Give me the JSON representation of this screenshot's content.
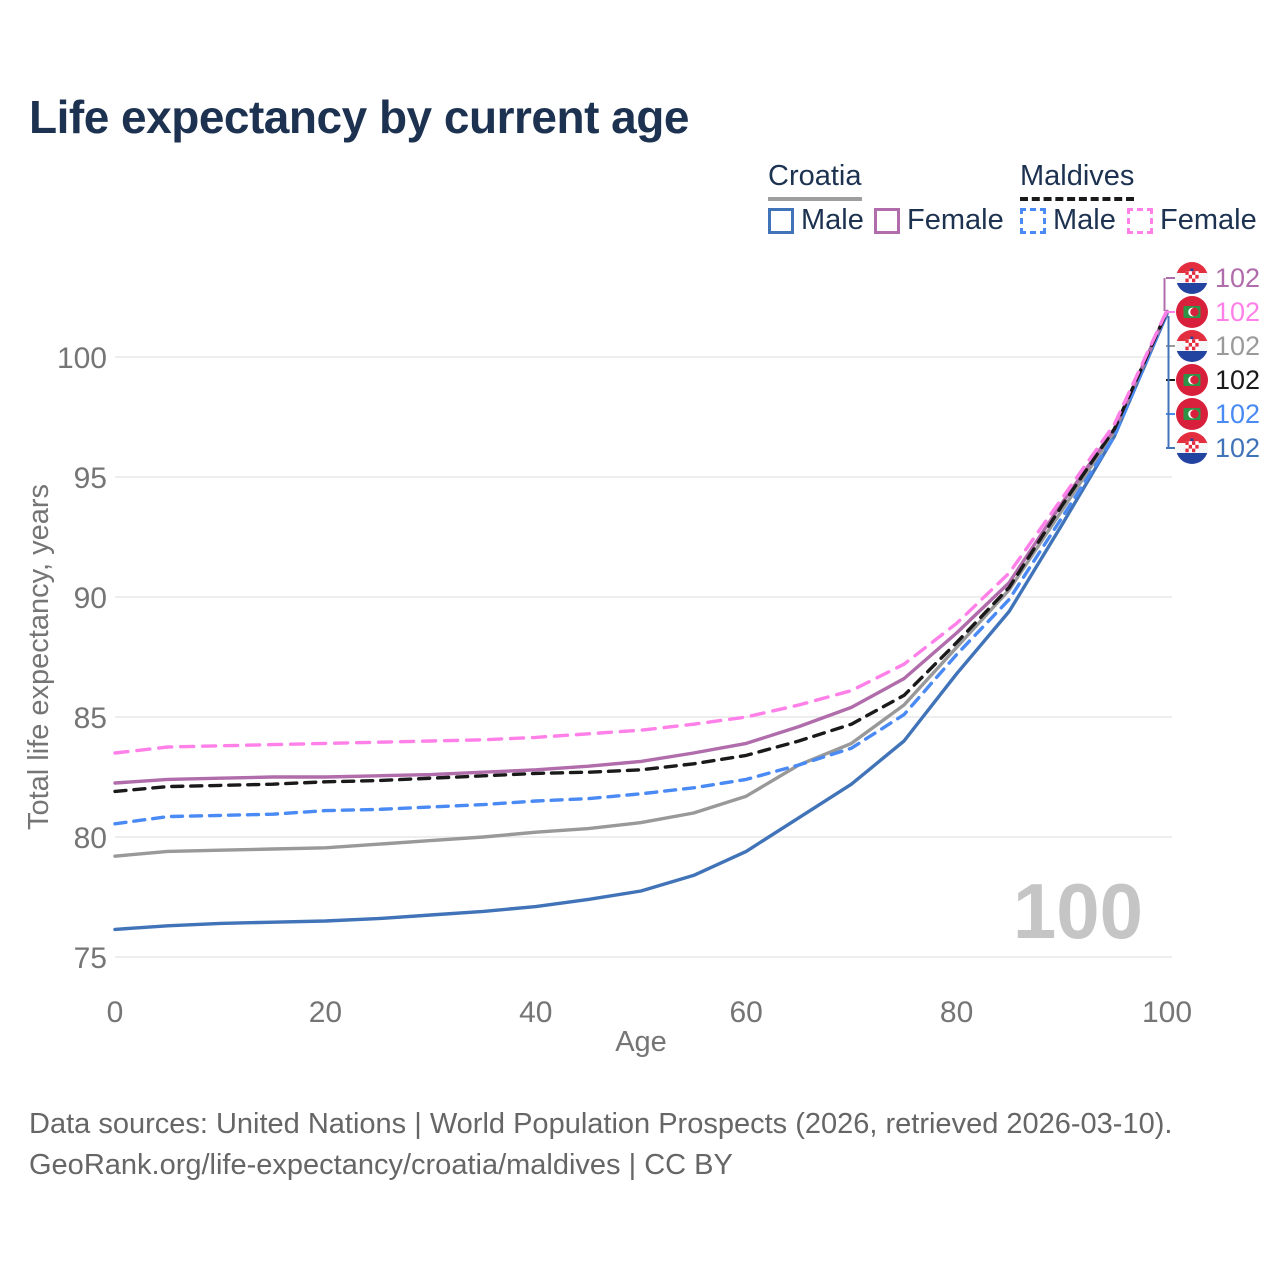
{
  "title": "Life expectancy by current age",
  "legend": {
    "groups": [
      {
        "label": "Croatia",
        "underline": {
          "color": "#9e9e9e",
          "style": "solid"
        },
        "entries": [
          {
            "label": "Male",
            "color": "#4173b8",
            "dash": false
          },
          {
            "label": "Female",
            "color": "#b06cab",
            "dash": false
          }
        ]
      },
      {
        "label": "Maldives",
        "underline": {
          "color": "#1a1a1a",
          "style": "dashed"
        },
        "entries": [
          {
            "label": "Male",
            "color": "#4a8af4",
            "dash": true
          },
          {
            "label": "Female",
            "color": "#ff80e8",
            "dash": true
          }
        ]
      }
    ]
  },
  "chart_data": {
    "type": "line",
    "title": "Life expectancy by current age",
    "xlabel": "Age",
    "ylabel": "Total life expectancy, years",
    "xlim": [
      0,
      100
    ],
    "ylim": [
      75,
      102
    ],
    "x_ticks": [
      0,
      20,
      40,
      60,
      80,
      100
    ],
    "y_ticks": [
      75,
      80,
      85,
      90,
      95,
      100
    ],
    "grid": "horizontal",
    "legend_position": "top-right",
    "x": [
      0,
      5,
      10,
      15,
      20,
      25,
      30,
      35,
      40,
      45,
      50,
      55,
      60,
      65,
      70,
      75,
      80,
      85,
      90,
      95,
      100
    ],
    "series": [
      {
        "name": "Croatia Male",
        "country": "Croatia",
        "sex": "male",
        "color": "#4173b8",
        "dash": null,
        "values": [
          76.15,
          76.3,
          76.4,
          76.45,
          76.5,
          76.6,
          76.75,
          76.9,
          77.1,
          77.4,
          77.75,
          78.4,
          79.4,
          80.8,
          82.2,
          84.0,
          86.8,
          89.4,
          93.0,
          96.7,
          101.8
        ]
      },
      {
        "name": "Croatia",
        "country": "Croatia",
        "sex": "total",
        "color": "#999999",
        "dash": null,
        "values": [
          79.2,
          79.4,
          79.45,
          79.5,
          79.55,
          79.7,
          79.85,
          80.0,
          80.2,
          80.35,
          80.6,
          81.0,
          81.7,
          83.0,
          83.9,
          85.5,
          87.9,
          90.3,
          93.6,
          96.9,
          101.9
        ]
      },
      {
        "name": "Maldives Male",
        "country": "Maldives",
        "sex": "male",
        "color": "#4a8af4",
        "dash": "11 8",
        "values": [
          80.55,
          80.85,
          80.9,
          80.95,
          81.1,
          81.15,
          81.25,
          81.35,
          81.5,
          81.6,
          81.8,
          82.05,
          82.4,
          83.0,
          83.7,
          85.1,
          87.6,
          89.9,
          93.3,
          96.7,
          101.85
        ]
      },
      {
        "name": "Croatia Female",
        "country": "Croatia",
        "sex": "female",
        "color": "#b06cab",
        "dash": null,
        "values": [
          82.25,
          82.4,
          82.45,
          82.5,
          82.5,
          82.55,
          82.6,
          82.7,
          82.8,
          82.95,
          83.15,
          83.5,
          83.9,
          84.6,
          85.4,
          86.6,
          88.5,
          90.6,
          93.9,
          97.0,
          101.9
        ]
      },
      {
        "name": "Maldives",
        "country": "Maldives",
        "sex": "total",
        "color": "#1a1a1a",
        "dash": "11 8",
        "values": [
          81.9,
          82.1,
          82.15,
          82.2,
          82.3,
          82.35,
          82.45,
          82.55,
          82.65,
          82.7,
          82.8,
          83.05,
          83.4,
          84.0,
          84.7,
          85.9,
          88.1,
          90.4,
          93.8,
          97.0,
          101.9
        ]
      },
      {
        "name": "Maldives Female",
        "country": "Maldives",
        "sex": "female",
        "color": "#ff80e8",
        "dash": "13 9",
        "values": [
          83.5,
          83.75,
          83.8,
          83.85,
          83.9,
          83.95,
          84.0,
          84.05,
          84.15,
          84.3,
          84.45,
          84.7,
          85.0,
          85.5,
          86.1,
          87.2,
          88.9,
          91.0,
          94.1,
          97.2,
          101.95
        ]
      }
    ]
  },
  "end_labels": [
    {
      "series": "croatia-female",
      "flag": "croatia",
      "value": "102",
      "color": "#b06cab"
    },
    {
      "series": "maldives-female",
      "flag": "maldives",
      "value": "102",
      "color": "#ff80e8"
    },
    {
      "series": "croatia-total",
      "flag": "croatia",
      "value": "102",
      "color": "#9a9a9a"
    },
    {
      "series": "maldives-total",
      "flag": "maldives",
      "value": "102",
      "color": "#1a1a1a"
    },
    {
      "series": "maldives-male",
      "flag": "maldives",
      "value": "102",
      "color": "#4a8af4"
    },
    {
      "series": "croatia-male",
      "flag": "croatia",
      "value": "102",
      "color": "#4173b8"
    }
  ],
  "watermark": "100",
  "footer": {
    "line1": "Data sources: United Nations | World Population Prospects (2026, retrieved 2026-03-10).",
    "line2": "GeoRank.org/life-expectancy/croatia/maldives | CC BY"
  }
}
